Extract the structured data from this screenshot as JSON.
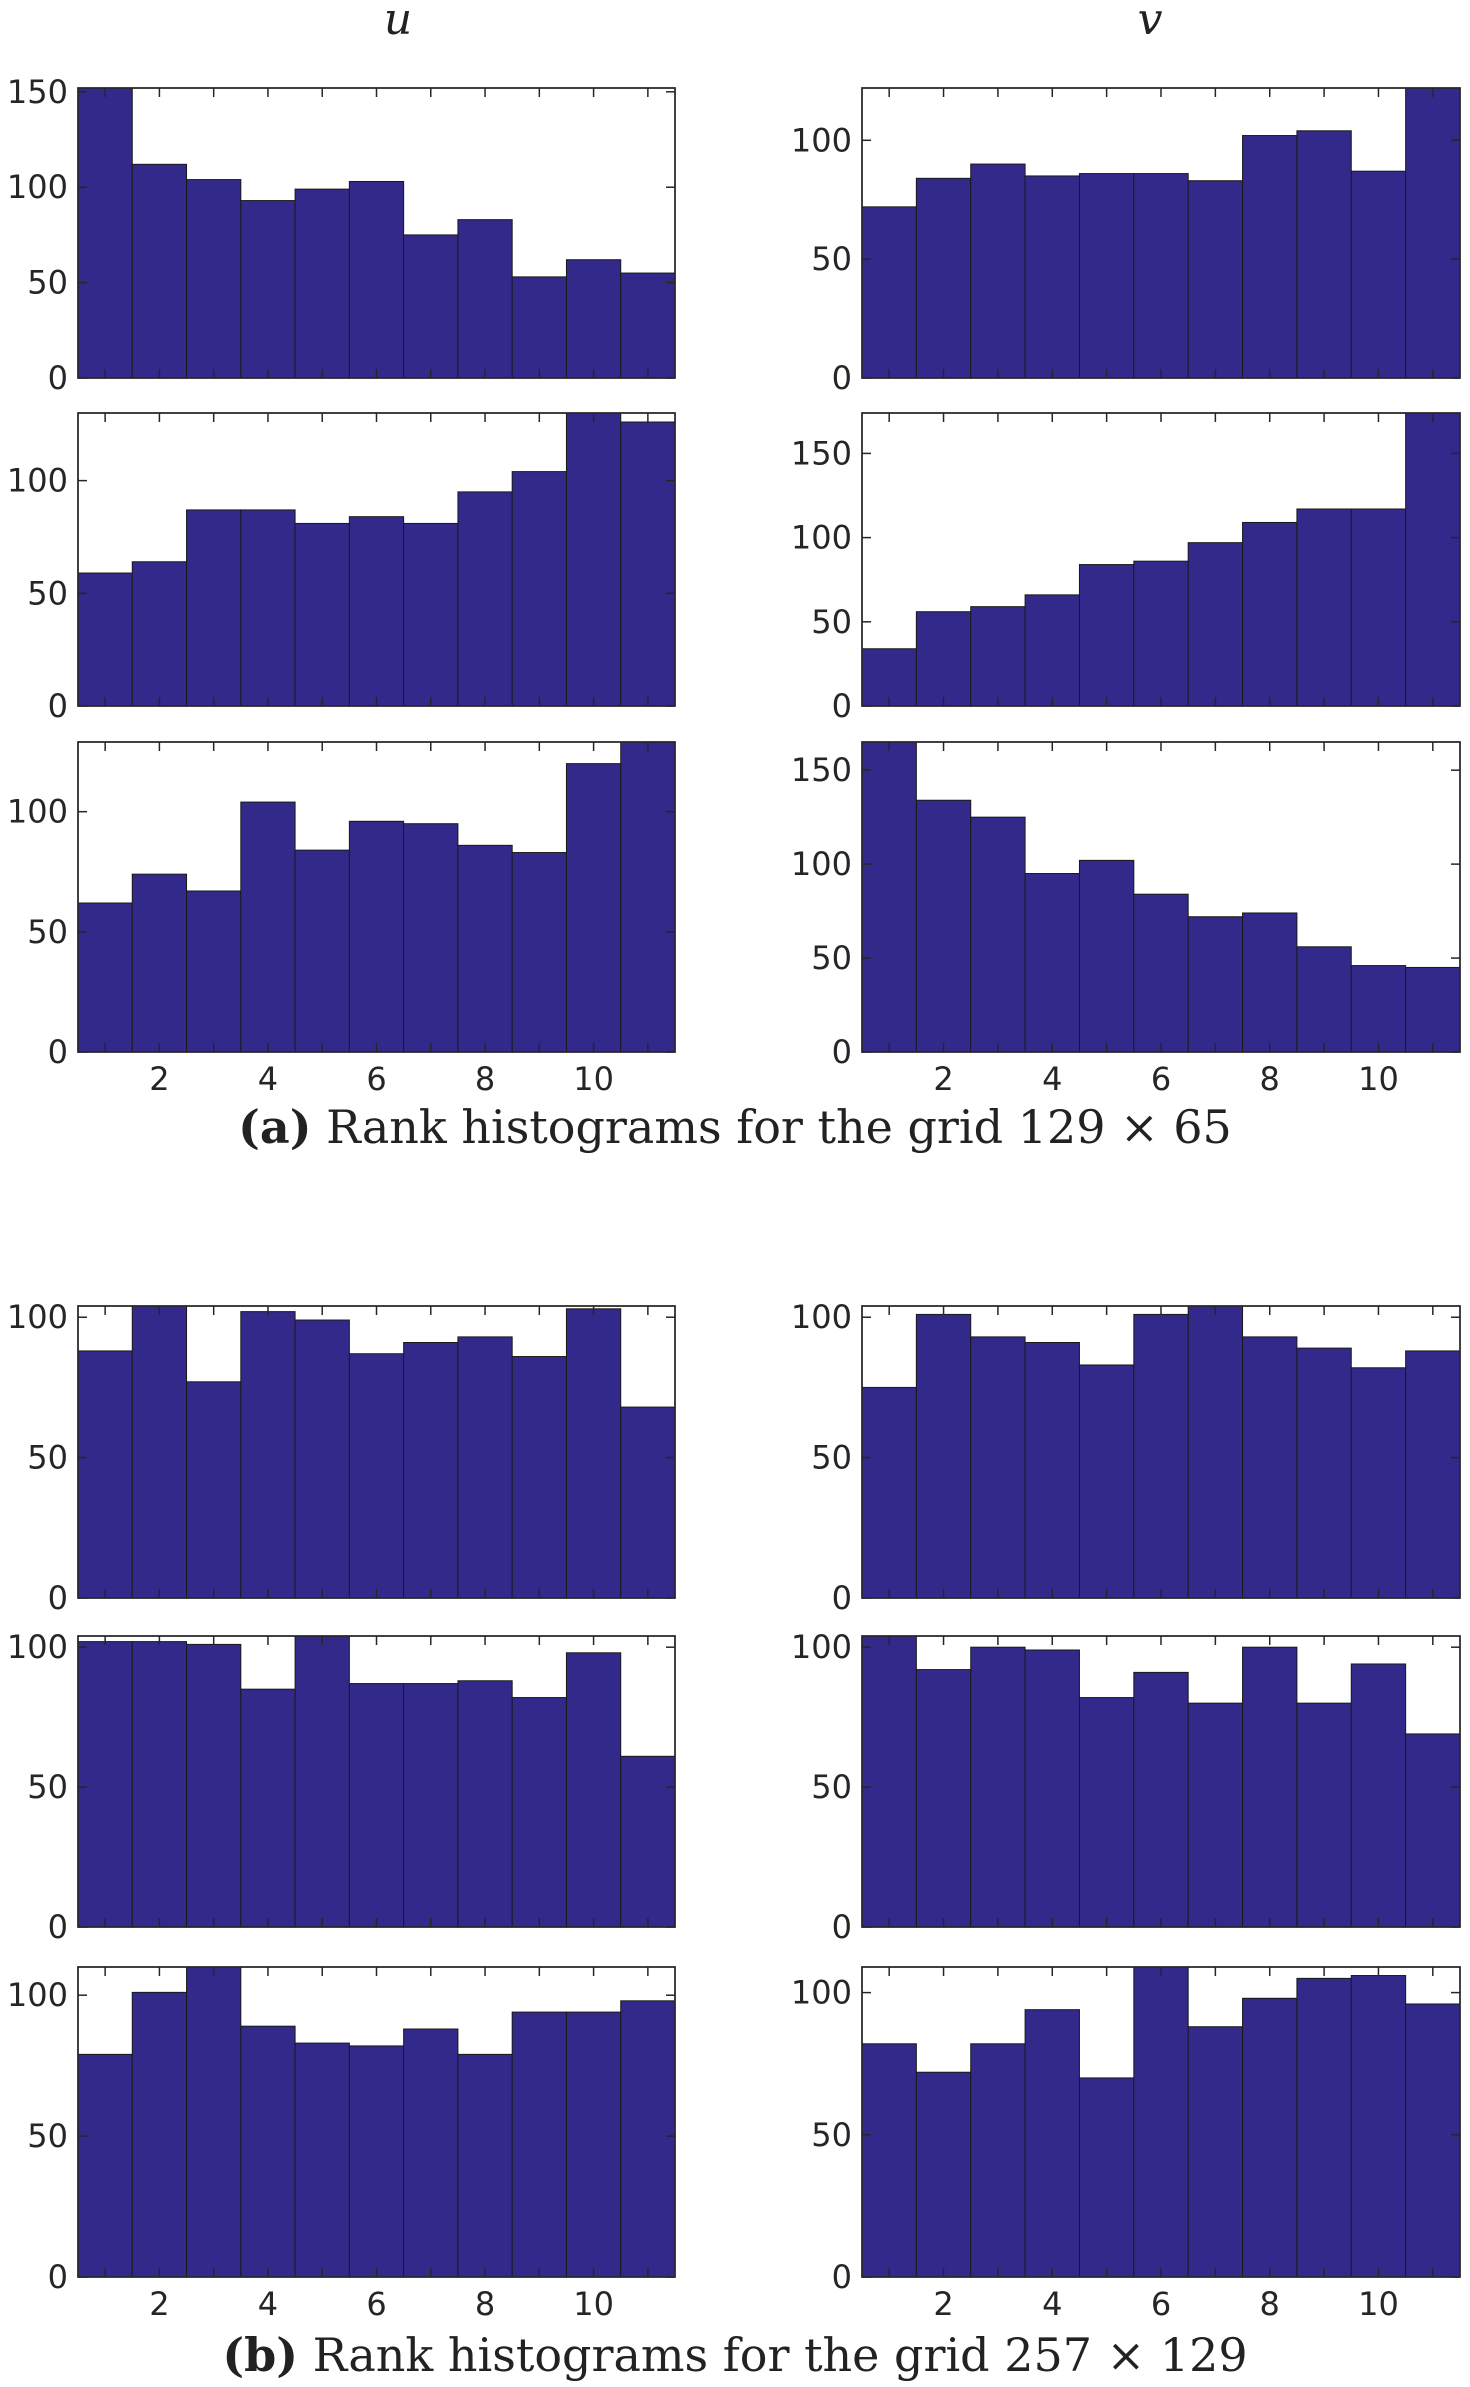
{
  "column_titles": [
    "u",
    "v"
  ],
  "captions": [
    {
      "label": "(a)",
      "text": "Rank histograms for the grid 129 × 65"
    },
    {
      "label": "(b)",
      "text": "Rank histograms for the grid 257 × 129"
    }
  ],
  "colors": {
    "bar": "#33298a",
    "axis": "#262626"
  },
  "chart_data": [
    {
      "type": "bar",
      "panel": "a",
      "variable": "u",
      "row": 1,
      "categories": [
        1,
        2,
        3,
        4,
        5,
        6,
        7,
        8,
        9,
        10,
        11
      ],
      "values": [
        152,
        112,
        104,
        93,
        99,
        103,
        75,
        83,
        53,
        62,
        55
      ],
      "ylim": [
        0,
        152
      ],
      "yticks": [
        0,
        50,
        100,
        150
      ],
      "xticks": []
    },
    {
      "type": "bar",
      "panel": "a",
      "variable": "v",
      "row": 1,
      "categories": [
        1,
        2,
        3,
        4,
        5,
        6,
        7,
        8,
        9,
        10,
        11
      ],
      "values": [
        72,
        84,
        90,
        85,
        86,
        86,
        83,
        102,
        104,
        87,
        122
      ],
      "ylim": [
        0,
        122
      ],
      "yticks": [
        0,
        50,
        100
      ],
      "xticks": []
    },
    {
      "type": "bar",
      "panel": "a",
      "variable": "u",
      "row": 2,
      "categories": [
        1,
        2,
        3,
        4,
        5,
        6,
        7,
        8,
        9,
        10,
        11
      ],
      "values": [
        59,
        64,
        87,
        87,
        81,
        84,
        81,
        95,
        104,
        130,
        126
      ],
      "ylim": [
        0,
        130
      ],
      "yticks": [
        0,
        50,
        100
      ],
      "xticks": []
    },
    {
      "type": "bar",
      "panel": "a",
      "variable": "v",
      "row": 2,
      "categories": [
        1,
        2,
        3,
        4,
        5,
        6,
        7,
        8,
        9,
        10,
        11
      ],
      "values": [
        34,
        56,
        59,
        66,
        84,
        86,
        97,
        109,
        117,
        117,
        174
      ],
      "ylim": [
        0,
        174
      ],
      "yticks": [
        0,
        50,
        100,
        150
      ],
      "xticks": []
    },
    {
      "type": "bar",
      "panel": "a",
      "variable": "u",
      "row": 3,
      "categories": [
        1,
        2,
        3,
        4,
        5,
        6,
        7,
        8,
        9,
        10,
        11
      ],
      "values": [
        62,
        74,
        67,
        104,
        84,
        96,
        95,
        86,
        83,
        120,
        129
      ],
      "ylim": [
        0,
        129
      ],
      "yticks": [
        0,
        50,
        100
      ],
      "xticks": [
        2,
        4,
        6,
        8,
        10
      ]
    },
    {
      "type": "bar",
      "panel": "a",
      "variable": "v",
      "row": 3,
      "categories": [
        1,
        2,
        3,
        4,
        5,
        6,
        7,
        8,
        9,
        10,
        11
      ],
      "values": [
        165,
        134,
        125,
        95,
        102,
        84,
        72,
        74,
        56,
        46,
        45
      ],
      "ylim": [
        0,
        165
      ],
      "yticks": [
        0,
        50,
        100,
        150
      ],
      "xticks": [
        2,
        4,
        6,
        8,
        10
      ]
    },
    {
      "type": "bar",
      "panel": "b",
      "variable": "u",
      "row": 1,
      "categories": [
        1,
        2,
        3,
        4,
        5,
        6,
        7,
        8,
        9,
        10,
        11
      ],
      "values": [
        88,
        104,
        77,
        102,
        99,
        87,
        91,
        93,
        86,
        103,
        68
      ],
      "ylim": [
        0,
        104
      ],
      "yticks": [
        0,
        50,
        100
      ],
      "xticks": []
    },
    {
      "type": "bar",
      "panel": "b",
      "variable": "v",
      "row": 1,
      "categories": [
        1,
        2,
        3,
        4,
        5,
        6,
        7,
        8,
        9,
        10,
        11
      ],
      "values": [
        75,
        101,
        93,
        91,
        83,
        101,
        104,
        93,
        89,
        82,
        88
      ],
      "ylim": [
        0,
        104
      ],
      "yticks": [
        0,
        50,
        100
      ],
      "xticks": []
    },
    {
      "type": "bar",
      "panel": "b",
      "variable": "u",
      "row": 2,
      "categories": [
        1,
        2,
        3,
        4,
        5,
        6,
        7,
        8,
        9,
        10,
        11
      ],
      "values": [
        102,
        102,
        101,
        85,
        104,
        87,
        87,
        88,
        82,
        98,
        61
      ],
      "ylim": [
        0,
        104
      ],
      "yticks": [
        0,
        50,
        100
      ],
      "xticks": []
    },
    {
      "type": "bar",
      "panel": "b",
      "variable": "v",
      "row": 2,
      "categories": [
        1,
        2,
        3,
        4,
        5,
        6,
        7,
        8,
        9,
        10,
        11
      ],
      "values": [
        104,
        92,
        100,
        99,
        82,
        91,
        80,
        100,
        80,
        94,
        69
      ],
      "ylim": [
        0,
        104
      ],
      "yticks": [
        0,
        50,
        100
      ],
      "xticks": []
    },
    {
      "type": "bar",
      "panel": "b",
      "variable": "u",
      "row": 3,
      "categories": [
        1,
        2,
        3,
        4,
        5,
        6,
        7,
        8,
        9,
        10,
        11
      ],
      "values": [
        79,
        101,
        110,
        89,
        83,
        82,
        88,
        79,
        94,
        94,
        98
      ],
      "ylim": [
        0,
        110
      ],
      "yticks": [
        0,
        50,
        100
      ],
      "xticks": [
        2,
        4,
        6,
        8,
        10
      ]
    },
    {
      "type": "bar",
      "panel": "b",
      "variable": "v",
      "row": 3,
      "categories": [
        1,
        2,
        3,
        4,
        5,
        6,
        7,
        8,
        9,
        10,
        11
      ],
      "values": [
        82,
        72,
        82,
        94,
        70,
        109,
        88,
        98,
        105,
        106,
        96
      ],
      "ylim": [
        0,
        109
      ],
      "yticks": [
        0,
        50,
        100
      ],
      "xticks": [
        2,
        4,
        6,
        8,
        10
      ]
    }
  ]
}
